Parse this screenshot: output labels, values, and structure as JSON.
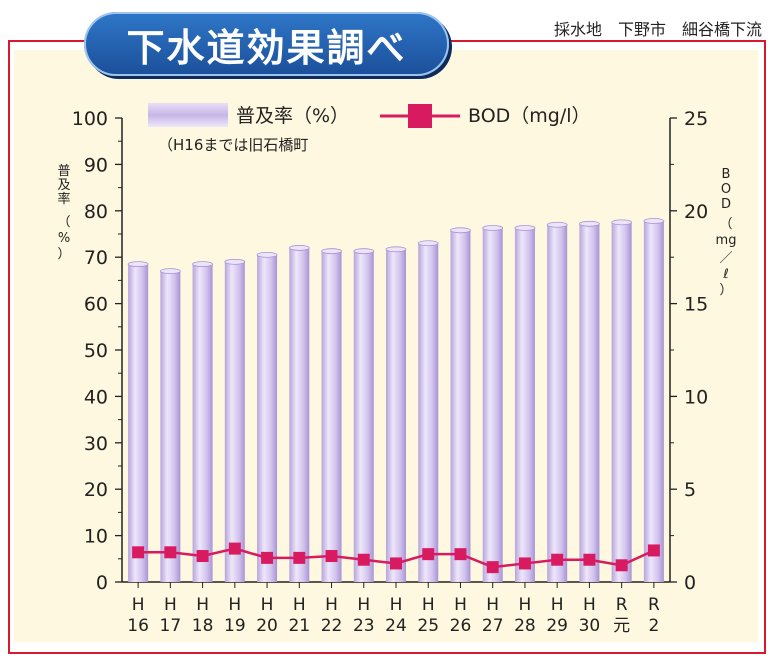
{
  "title": "下水道効果調べ",
  "location": "採水地　下野市　細谷橋下流",
  "left_axis_label": "普及率（%）",
  "right_axis_label": "BOD（mg/ℓ）",
  "legend": {
    "bar_label": "普及率（%）",
    "bar_note": "（H16までは旧石橋町",
    "line_label": "BOD（mg/l）"
  },
  "colors": {
    "bar": "#c9b9e6",
    "line": "#d81b60",
    "frame": "#d7192f",
    "title_bg": "#2563b0",
    "plot_bg": "#fdf8df"
  },
  "chart_data": {
    "type": "bar+line",
    "categories": [
      [
        "H",
        "16"
      ],
      [
        "H",
        "17"
      ],
      [
        "H",
        "18"
      ],
      [
        "H",
        "19"
      ],
      [
        "H",
        "20"
      ],
      [
        "H",
        "21"
      ],
      [
        "H",
        "22"
      ],
      [
        "H",
        "23"
      ],
      [
        "H",
        "24"
      ],
      [
        "H",
        "25"
      ],
      [
        "H",
        "26"
      ],
      [
        "H",
        "27"
      ],
      [
        "H",
        "28"
      ],
      [
        "H",
        "29"
      ],
      [
        "H",
        "30"
      ],
      [
        "R",
        "元"
      ],
      [
        "R",
        "2"
      ]
    ],
    "series": [
      {
        "name": "普及率（%）",
        "axis": "left",
        "values": [
          68.5,
          67,
          68.5,
          69,
          70.5,
          72,
          71.3,
          71.3,
          71.7,
          73,
          75.8,
          76.3,
          76.3,
          77,
          77.2,
          77.5,
          77.8
        ]
      },
      {
        "name": "BOD（mg/l）",
        "axis": "right",
        "values": [
          1.6,
          1.6,
          1.4,
          1.8,
          1.3,
          1.3,
          1.4,
          1.2,
          1.0,
          1.5,
          1.5,
          0.8,
          1.0,
          1.2,
          1.2,
          0.9,
          1.7
        ]
      }
    ],
    "left_axis": {
      "min": 0,
      "max": 100,
      "ticks": [
        0,
        10,
        20,
        30,
        40,
        50,
        60,
        70,
        80,
        90,
        100
      ]
    },
    "right_axis": {
      "min": 0,
      "max": 25,
      "ticks": [
        0,
        5,
        10,
        15,
        20,
        25
      ]
    }
  }
}
